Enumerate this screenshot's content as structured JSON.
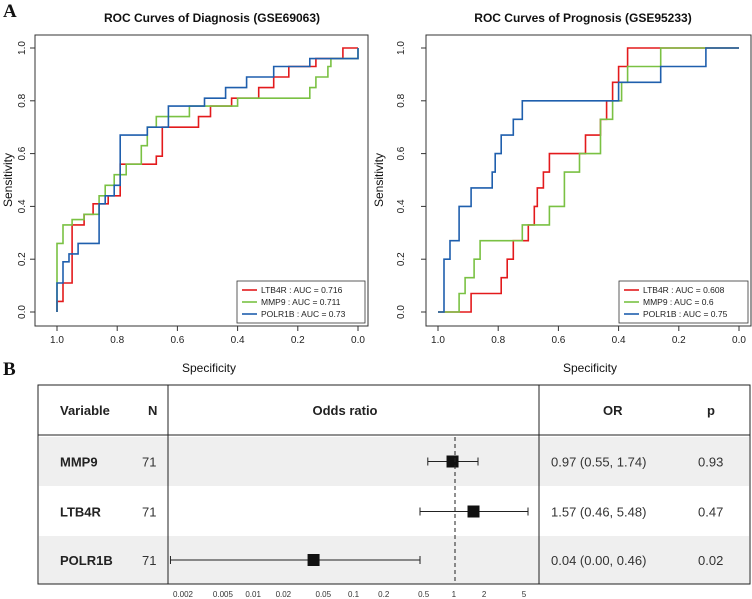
{
  "panel_labels": [
    "A",
    "B"
  ],
  "chart_data": [
    {
      "type": "line",
      "title": "ROC Curves of Diagnosis (GSE69063)",
      "xlabel": "Specificity",
      "ylabel": "Sensitivity",
      "xlim": [
        1.0,
        0.0
      ],
      "ylim": [
        0.0,
        1.0
      ],
      "xticks": [
        "1.0",
        "0.8",
        "0.6",
        "0.4",
        "0.2",
        "0.0"
      ],
      "yticks": [
        "0.0",
        "0.2",
        "0.4",
        "0.6",
        "0.8",
        "1.0"
      ],
      "legend_position": "bottom-right",
      "series": [
        {
          "name": "LTB4R",
          "legend": "LTB4R : AUC = 0.716",
          "color": "#e31a1c",
          "points": [
            [
              1.0,
              0.0
            ],
            [
              1.0,
              0.04
            ],
            [
              0.98,
              0.04
            ],
            [
              0.98,
              0.11
            ],
            [
              0.95,
              0.11
            ],
            [
              0.95,
              0.33
            ],
            [
              0.91,
              0.33
            ],
            [
              0.91,
              0.37
            ],
            [
              0.88,
              0.37
            ],
            [
              0.88,
              0.41
            ],
            [
              0.83,
              0.41
            ],
            [
              0.83,
              0.44
            ],
            [
              0.79,
              0.44
            ],
            [
              0.79,
              0.56
            ],
            [
              0.67,
              0.56
            ],
            [
              0.67,
              0.59
            ],
            [
              0.65,
              0.59
            ],
            [
              0.65,
              0.7
            ],
            [
              0.53,
              0.7
            ],
            [
              0.53,
              0.74
            ],
            [
              0.49,
              0.74
            ],
            [
              0.49,
              0.78
            ],
            [
              0.42,
              0.78
            ],
            [
              0.42,
              0.81
            ],
            [
              0.33,
              0.81
            ],
            [
              0.33,
              0.85
            ],
            [
              0.28,
              0.85
            ],
            [
              0.28,
              0.89
            ],
            [
              0.23,
              0.89
            ],
            [
              0.23,
              0.93
            ],
            [
              0.14,
              0.93
            ],
            [
              0.14,
              0.96
            ],
            [
              0.05,
              0.96
            ],
            [
              0.05,
              1.0
            ],
            [
              0.0,
              1.0
            ]
          ]
        },
        {
          "name": "MMP9",
          "legend": "MMP9 : AUC = 0.711",
          "color": "#7ac143",
          "points": [
            [
              1.0,
              0.0
            ],
            [
              1.0,
              0.26
            ],
            [
              0.98,
              0.26
            ],
            [
              0.98,
              0.33
            ],
            [
              0.95,
              0.33
            ],
            [
              0.95,
              0.35
            ],
            [
              0.91,
              0.35
            ],
            [
              0.91,
              0.37
            ],
            [
              0.86,
              0.37
            ],
            [
              0.86,
              0.44
            ],
            [
              0.84,
              0.44
            ],
            [
              0.84,
              0.48
            ],
            [
              0.81,
              0.48
            ],
            [
              0.81,
              0.52
            ],
            [
              0.77,
              0.52
            ],
            [
              0.77,
              0.56
            ],
            [
              0.72,
              0.56
            ],
            [
              0.72,
              0.63
            ],
            [
              0.7,
              0.63
            ],
            [
              0.7,
              0.7
            ],
            [
              0.67,
              0.7
            ],
            [
              0.67,
              0.74
            ],
            [
              0.56,
              0.74
            ],
            [
              0.56,
              0.78
            ],
            [
              0.4,
              0.78
            ],
            [
              0.4,
              0.81
            ],
            [
              0.16,
              0.81
            ],
            [
              0.16,
              0.85
            ],
            [
              0.14,
              0.85
            ],
            [
              0.14,
              0.89
            ],
            [
              0.1,
              0.89
            ],
            [
              0.1,
              0.93
            ],
            [
              0.09,
              0.93
            ],
            [
              0.09,
              0.96
            ],
            [
              0.0,
              0.96
            ],
            [
              0.0,
              1.0
            ]
          ]
        },
        {
          "name": "POLR1B",
          "legend": "POLR1B : AUC = 0.73",
          "color": "#1f5fad",
          "points": [
            [
              1.0,
              0.0
            ],
            [
              1.0,
              0.11
            ],
            [
              0.98,
              0.11
            ],
            [
              0.98,
              0.19
            ],
            [
              0.96,
              0.19
            ],
            [
              0.96,
              0.22
            ],
            [
              0.93,
              0.22
            ],
            [
              0.93,
              0.26
            ],
            [
              0.86,
              0.26
            ],
            [
              0.86,
              0.41
            ],
            [
              0.84,
              0.41
            ],
            [
              0.84,
              0.44
            ],
            [
              0.81,
              0.44
            ],
            [
              0.81,
              0.48
            ],
            [
              0.79,
              0.48
            ],
            [
              0.79,
              0.67
            ],
            [
              0.7,
              0.67
            ],
            [
              0.7,
              0.7
            ],
            [
              0.63,
              0.7
            ],
            [
              0.63,
              0.78
            ],
            [
              0.51,
              0.78
            ],
            [
              0.51,
              0.81
            ],
            [
              0.44,
              0.81
            ],
            [
              0.44,
              0.85
            ],
            [
              0.37,
              0.85
            ],
            [
              0.37,
              0.89
            ],
            [
              0.28,
              0.89
            ],
            [
              0.28,
              0.93
            ],
            [
              0.16,
              0.93
            ],
            [
              0.16,
              0.96
            ],
            [
              0.0,
              0.96
            ],
            [
              0.0,
              1.0
            ]
          ]
        }
      ]
    },
    {
      "type": "line",
      "title": "ROC Curves of Prognosis (GSE95233)",
      "xlabel": "Specificity",
      "ylabel": "Sensitivity",
      "xlim": [
        1.0,
        0.0
      ],
      "ylim": [
        0.0,
        1.0
      ],
      "xticks": [
        "1.0",
        "0.8",
        "0.6",
        "0.4",
        "0.2",
        "0.0"
      ],
      "yticks": [
        "0.0",
        "0.2",
        "0.4",
        "0.6",
        "0.8",
        "1.0"
      ],
      "legend_position": "bottom-right",
      "series": [
        {
          "name": "LTB4R",
          "legend": "LTB4R : AUC = 0.608",
          "color": "#e31a1c",
          "points": [
            [
              1.0,
              0.0
            ],
            [
              0.89,
              0.0
            ],
            [
              0.89,
              0.07
            ],
            [
              0.79,
              0.07
            ],
            [
              0.79,
              0.13
            ],
            [
              0.77,
              0.13
            ],
            [
              0.77,
              0.2
            ],
            [
              0.75,
              0.2
            ],
            [
              0.75,
              0.27
            ],
            [
              0.7,
              0.27
            ],
            [
              0.7,
              0.33
            ],
            [
              0.68,
              0.33
            ],
            [
              0.68,
              0.4
            ],
            [
              0.67,
              0.4
            ],
            [
              0.67,
              0.47
            ],
            [
              0.65,
              0.47
            ],
            [
              0.65,
              0.53
            ],
            [
              0.63,
              0.53
            ],
            [
              0.63,
              0.6
            ],
            [
              0.51,
              0.6
            ],
            [
              0.51,
              0.67
            ],
            [
              0.46,
              0.67
            ],
            [
              0.46,
              0.73
            ],
            [
              0.44,
              0.73
            ],
            [
              0.44,
              0.8
            ],
            [
              0.42,
              0.8
            ],
            [
              0.42,
              0.87
            ],
            [
              0.4,
              0.87
            ],
            [
              0.4,
              0.93
            ],
            [
              0.37,
              0.93
            ],
            [
              0.37,
              1.0
            ],
            [
              0.0,
              1.0
            ]
          ]
        },
        {
          "name": "MMP9",
          "legend": "MMP9 : AUC = 0.6",
          "color": "#7ac143",
          "points": [
            [
              1.0,
              0.0
            ],
            [
              0.93,
              0.0
            ],
            [
              0.93,
              0.07
            ],
            [
              0.91,
              0.07
            ],
            [
              0.91,
              0.13
            ],
            [
              0.88,
              0.13
            ],
            [
              0.88,
              0.2
            ],
            [
              0.86,
              0.2
            ],
            [
              0.86,
              0.27
            ],
            [
              0.72,
              0.27
            ],
            [
              0.72,
              0.33
            ],
            [
              0.63,
              0.33
            ],
            [
              0.63,
              0.4
            ],
            [
              0.58,
              0.4
            ],
            [
              0.58,
              0.53
            ],
            [
              0.53,
              0.53
            ],
            [
              0.53,
              0.6
            ],
            [
              0.46,
              0.6
            ],
            [
              0.46,
              0.73
            ],
            [
              0.42,
              0.73
            ],
            [
              0.42,
              0.8
            ],
            [
              0.39,
              0.8
            ],
            [
              0.39,
              0.87
            ],
            [
              0.37,
              0.87
            ],
            [
              0.37,
              0.93
            ],
            [
              0.26,
              0.93
            ],
            [
              0.26,
              1.0
            ],
            [
              0.0,
              1.0
            ]
          ]
        },
        {
          "name": "POLR1B",
          "legend": "POLR1B : AUC = 0.75",
          "color": "#1f5fad",
          "points": [
            [
              1.0,
              0.0
            ],
            [
              0.98,
              0.0
            ],
            [
              0.98,
              0.2
            ],
            [
              0.96,
              0.2
            ],
            [
              0.96,
              0.27
            ],
            [
              0.93,
              0.27
            ],
            [
              0.93,
              0.4
            ],
            [
              0.89,
              0.4
            ],
            [
              0.89,
              0.47
            ],
            [
              0.82,
              0.47
            ],
            [
              0.82,
              0.53
            ],
            [
              0.81,
              0.53
            ],
            [
              0.81,
              0.6
            ],
            [
              0.79,
              0.6
            ],
            [
              0.79,
              0.67
            ],
            [
              0.75,
              0.67
            ],
            [
              0.75,
              0.73
            ],
            [
              0.72,
              0.73
            ],
            [
              0.72,
              0.8
            ],
            [
              0.4,
              0.8
            ],
            [
              0.4,
              0.87
            ],
            [
              0.26,
              0.87
            ],
            [
              0.26,
              0.93
            ],
            [
              0.11,
              0.93
            ],
            [
              0.11,
              1.0
            ],
            [
              0.0,
              1.0
            ]
          ]
        }
      ]
    },
    {
      "type": "table",
      "subtype": "forest",
      "columns": [
        "Variable",
        "N",
        "Odds ratio",
        "OR",
        "p"
      ],
      "rows": [
        {
          "variable": "MMP9",
          "n": "71",
          "or": 0.97,
          "lo": 0.55,
          "hi": 1.74,
          "or_text": "0.97 (0.55, 1.74)",
          "p": "0.93"
        },
        {
          "variable": "LTB4R",
          "n": "71",
          "or": 1.57,
          "lo": 0.46,
          "hi": 5.48,
          "or_text": "1.57 (0.46, 5.48)",
          "p": "0.47"
        },
        {
          "variable": "POLR1B",
          "n": "71",
          "or": 0.04,
          "lo": 0.0015,
          "hi": 0.46,
          "or_text": "0.04 (0.00, 0.46)",
          "p": "0.02"
        }
      ],
      "x_scale": "log",
      "reference_line": 1,
      "xticks": [
        {
          "value": 0.002,
          "label": "0.002"
        },
        {
          "value": 0.005,
          "label": "0.005"
        },
        {
          "value": 0.01,
          "label": "0.01"
        },
        {
          "value": 0.02,
          "label": "0.02"
        },
        {
          "value": 0.05,
          "label": "0.05"
        },
        {
          "value": 0.1,
          "label": "0.1"
        },
        {
          "value": 0.2,
          "label": "0.2"
        },
        {
          "value": 0.5,
          "label": "0.5"
        },
        {
          "value": 1,
          "label": "1"
        },
        {
          "value": 2,
          "label": "2"
        },
        {
          "value": 5,
          "label": "5"
        }
      ],
      "row_shading": [
        "#efefef",
        "#ffffff",
        "#efefef"
      ]
    }
  ]
}
